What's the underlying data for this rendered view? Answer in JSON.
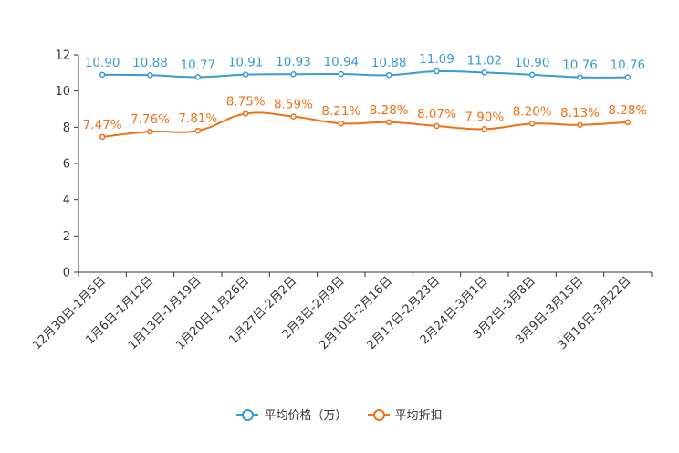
{
  "chart_data": {
    "type": "line",
    "categories": [
      "12月30日-1月5日",
      "1月6日-1月12日",
      "1月13日-1月19日",
      "1月20日-1月26日",
      "1月27日-2月2日",
      "2月3日-2月9日",
      "2月10日-2月16日",
      "2月17日-2月23日",
      "2月24日-3月1日",
      "3月2日-3月8日",
      "3月9日-3月15日",
      "3月16日-3月22日"
    ],
    "series": [
      {
        "name": "平均价格（万）",
        "color": "#3b9bd0",
        "values": [
          10.9,
          10.88,
          10.77,
          10.91,
          10.93,
          10.94,
          10.88,
          11.09,
          11.02,
          10.9,
          10.76,
          10.76
        ],
        "labels": [
          "10.90",
          "10.88",
          "10.77",
          "10.91",
          "10.93",
          "10.94",
          "10.88",
          "11.09",
          "11.02",
          "10.90",
          "10.76",
          "10.76"
        ]
      },
      {
        "name": "平均折扣",
        "color": "#f07016",
        "values": [
          7.47,
          7.76,
          7.81,
          8.75,
          8.59,
          8.21,
          8.28,
          8.07,
          7.9,
          8.2,
          8.13,
          8.28
        ],
        "labels": [
          "7.47%",
          "7.76%",
          "7.81%",
          "8.75%",
          "8.59%",
          "8.21%",
          "8.28%",
          "8.07%",
          "7.90%",
          "8.20%",
          "8.13%",
          "8.28%"
        ]
      }
    ],
    "yticks": [
      "0",
      "2",
      "4",
      "6",
      "8",
      "10",
      "12"
    ],
    "ylim": [
      0,
      12
    ],
    "title": "",
    "xlabel": "",
    "ylabel": ""
  },
  "legend": {
    "items": [
      {
        "label": "平均价格（万）",
        "color": "#3b9bd0",
        "icon": "circle-line-icon"
      },
      {
        "label": "平均折扣",
        "color": "#f07016",
        "icon": "circle-line-icon"
      }
    ]
  }
}
